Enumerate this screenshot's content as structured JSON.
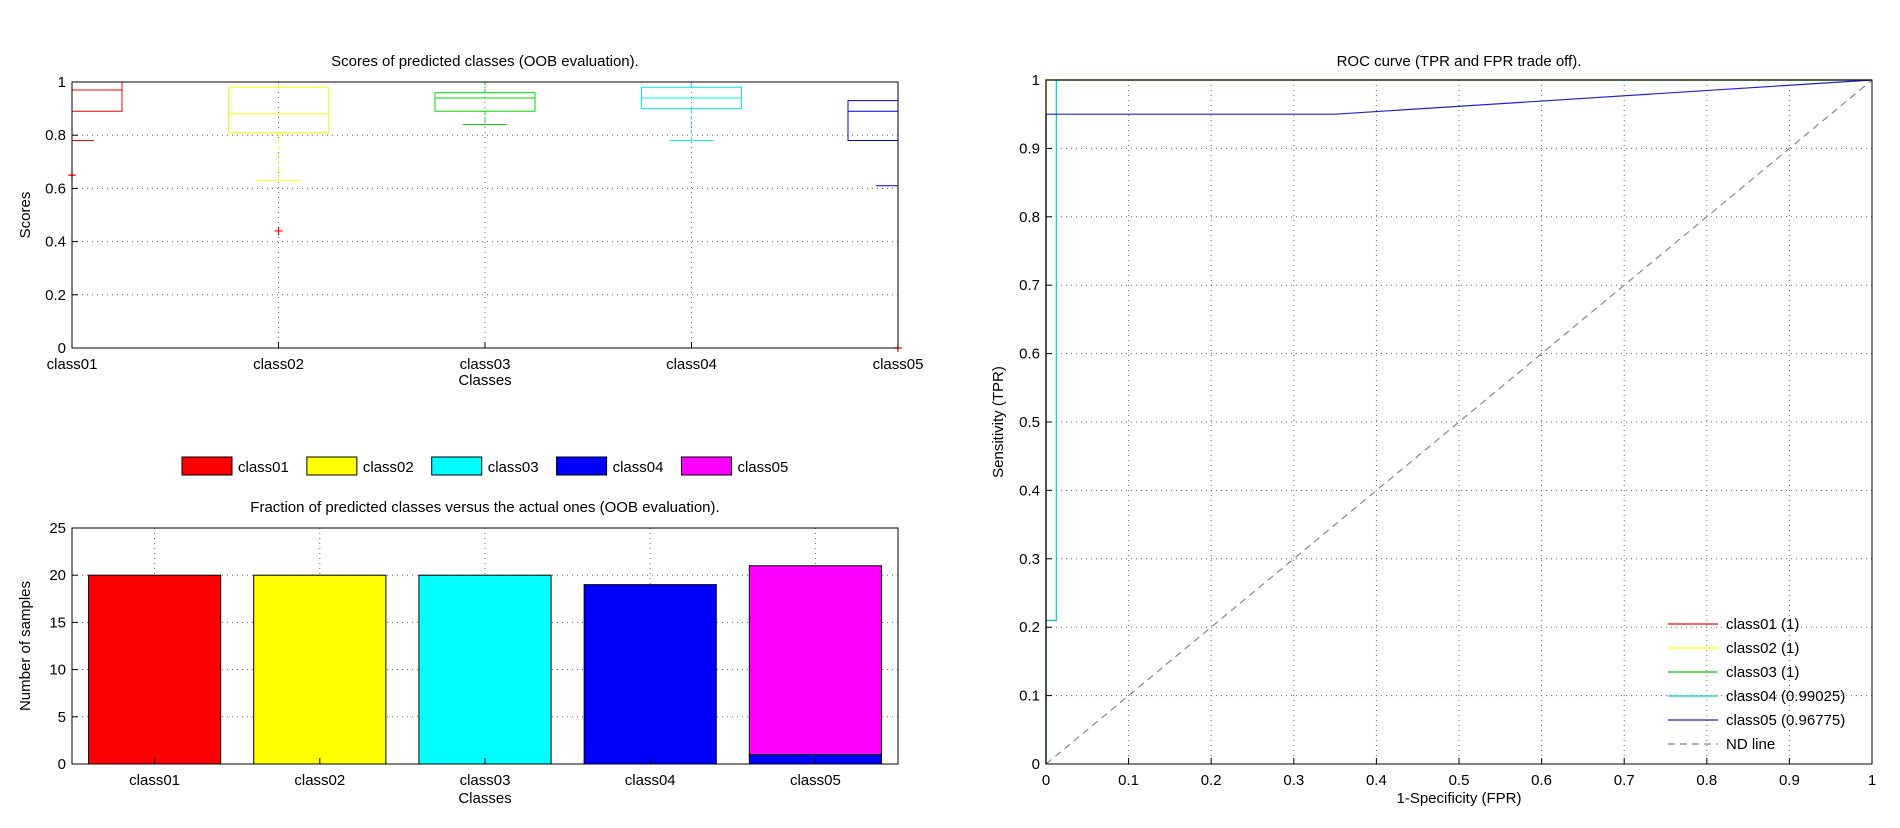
{
  "chart_data": [
    {
      "id": "boxplot",
      "type": "box",
      "title": "Scores of predicted classes (OOB evaluation).",
      "xlabel": "Classes",
      "ylabel": "Scores",
      "ylim": [
        0,
        1
      ],
      "yticks": [
        0,
        0.2,
        0.4,
        0.6,
        0.8,
        1
      ],
      "ytick_labels": [
        "0",
        "0.2",
        "0.4",
        "0.6",
        "0.8",
        "1"
      ],
      "grid": true,
      "categories": [
        "class01",
        "class02",
        "class03",
        "class04",
        "class05"
      ],
      "boxes": [
        {
          "name": "class01",
          "color": "#ff0000",
          "q1": 0.89,
          "median": 0.97,
          "q3": 1.0,
          "whisker_low": 0.78,
          "whisker_high": 1.0,
          "outliers": [
            0.65
          ]
        },
        {
          "name": "class02",
          "color": "#ffff00",
          "q1": 0.81,
          "median": 0.88,
          "q3": 0.98,
          "whisker_low": 0.63,
          "whisker_high": 1.0,
          "outliers": [
            0.44
          ]
        },
        {
          "name": "class03",
          "color": "#00dd00",
          "q1": 0.89,
          "median": 0.94,
          "q3": 0.96,
          "whisker_low": 0.84,
          "whisker_high": 1.0,
          "outliers": []
        },
        {
          "name": "class04",
          "color": "#00eeee",
          "q1": 0.9,
          "median": 0.94,
          "q3": 0.98,
          "whisker_low": 0.78,
          "whisker_high": 1.0,
          "outliers": []
        },
        {
          "name": "class05",
          "color": "#0000dd",
          "q1": 0.78,
          "median": 0.89,
          "q3": 0.93,
          "whisker_low": 0.61,
          "whisker_high": 1.0,
          "outliers": [
            0.0
          ]
        }
      ],
      "outlier_color": "#ff0000"
    },
    {
      "id": "stackedbar",
      "type": "bar",
      "stacked": true,
      "title": "Fraction of predicted classes versus the actual ones (OOB evaluation).",
      "xlabel": "Classes",
      "ylabel": "Number of samples",
      "ylim": [
        0,
        25
      ],
      "yticks": [
        0,
        5,
        10,
        15,
        20,
        25
      ],
      "ytick_labels": [
        "0",
        "5",
        "10",
        "15",
        "20",
        "25"
      ],
      "grid": true,
      "legend_position": "top",
      "categories": [
        "class01",
        "class02",
        "class03",
        "class04",
        "class05"
      ],
      "series": [
        {
          "name": "class01",
          "color": "#ff0000",
          "values": [
            20,
            0,
            0,
            0,
            0
          ]
        },
        {
          "name": "class02",
          "color": "#ffff00",
          "values": [
            0,
            20,
            0,
            0,
            0
          ]
        },
        {
          "name": "class03",
          "color": "#00ffff",
          "values": [
            0,
            0,
            20,
            0,
            0
          ]
        },
        {
          "name": "class04",
          "color": "#0000ff",
          "values": [
            0,
            0,
            0,
            19,
            1
          ]
        },
        {
          "name": "class05",
          "color": "#ff00ff",
          "values": [
            0,
            0,
            0,
            0,
            20
          ]
        }
      ]
    },
    {
      "id": "roc",
      "type": "line",
      "title": "ROC curve (TPR and FPR trade off).",
      "xlabel": "1-Specificity (FPR)",
      "ylabel": "Sensitivity (TPR)",
      "xlim": [
        0,
        1
      ],
      "ylim": [
        0,
        1
      ],
      "xticks": [
        0,
        0.1,
        0.2,
        0.3,
        0.4,
        0.5,
        0.6,
        0.7,
        0.8,
        0.9,
        1
      ],
      "xtick_labels": [
        "0",
        "0.1",
        "0.2",
        "0.3",
        "0.4",
        "0.5",
        "0.6",
        "0.7",
        "0.8",
        "0.9",
        "1"
      ],
      "yticks": [
        0,
        0.1,
        0.2,
        0.3,
        0.4,
        0.5,
        0.6,
        0.7,
        0.8,
        0.9,
        1
      ],
      "ytick_labels": [
        "0",
        "0.1",
        "0.2",
        "0.3",
        "0.4",
        "0.5",
        "0.6",
        "0.7",
        "0.8",
        "0.9",
        "1"
      ],
      "grid": true,
      "legend_position": "bottom-right",
      "series": [
        {
          "name": "class01 (1)",
          "color": "#ff0000",
          "dash": false,
          "points": [
            [
              0,
              0
            ],
            [
              0,
              1
            ],
            [
              1,
              1
            ]
          ]
        },
        {
          "name": "class02 (1)",
          "color": "#ffff00",
          "dash": false,
          "points": [
            [
              0,
              0
            ],
            [
              0,
              1
            ],
            [
              1,
              1
            ]
          ]
        },
        {
          "name": "class03 (1)",
          "color": "#00cc00",
          "dash": false,
          "points": [
            [
              0,
              0
            ],
            [
              0,
              1
            ],
            [
              1,
              1
            ]
          ]
        },
        {
          "name": "class04 (0.99025)",
          "color": "#00cccc",
          "dash": false,
          "points": [
            [
              0,
              0
            ],
            [
              0,
              0.21
            ],
            [
              0.0125,
              0.21
            ],
            [
              0.0125,
              1
            ],
            [
              1,
              1
            ]
          ]
        },
        {
          "name": "class05 (0.96775)",
          "color": "#2222cc",
          "dash": false,
          "points": [
            [
              0,
              0
            ],
            [
              0,
              0.95
            ],
            [
              0.35,
              0.95
            ],
            [
              1,
              1
            ]
          ]
        },
        {
          "name": "ND line",
          "color": "#888888",
          "dash": true,
          "points": [
            [
              0,
              0
            ],
            [
              1,
              1
            ]
          ]
        }
      ]
    }
  ]
}
